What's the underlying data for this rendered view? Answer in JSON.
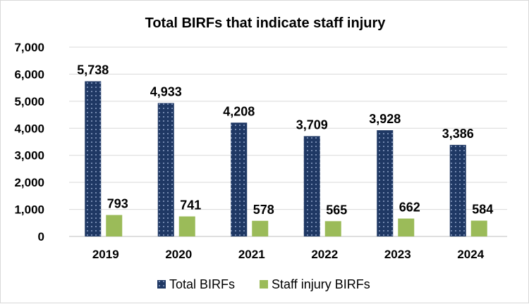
{
  "chart_data": {
    "type": "bar",
    "title": "Total BIRFs that indicate staff injury",
    "xlabel": "",
    "ylabel": "",
    "categories": [
      "2019",
      "2020",
      "2021",
      "2022",
      "2023",
      "2024"
    ],
    "series": [
      {
        "name": "Total BIRFs",
        "values": [
          5738,
          4933,
          4208,
          3709,
          3928,
          3386
        ],
        "labels": [
          "5,738",
          "4,933",
          "4,208",
          "3,709",
          "3,928",
          "3,386"
        ],
        "color": "#1f3864"
      },
      {
        "name": "Staff injury BIRFs",
        "values": [
          793,
          741,
          578,
          565,
          662,
          584
        ],
        "labels": [
          "793",
          "741",
          "578",
          "565",
          "662",
          "584"
        ],
        "color": "#9bbb59"
      }
    ],
    "ylim": [
      0,
      7000
    ],
    "yticks": [
      0,
      1000,
      2000,
      3000,
      4000,
      5000,
      6000,
      7000
    ],
    "ytick_labels": [
      "0",
      "1,000",
      "2,000",
      "3,000",
      "4,000",
      "5,000",
      "6,000",
      "7,000"
    ],
    "grid": true,
    "legend_position": "bottom"
  }
}
